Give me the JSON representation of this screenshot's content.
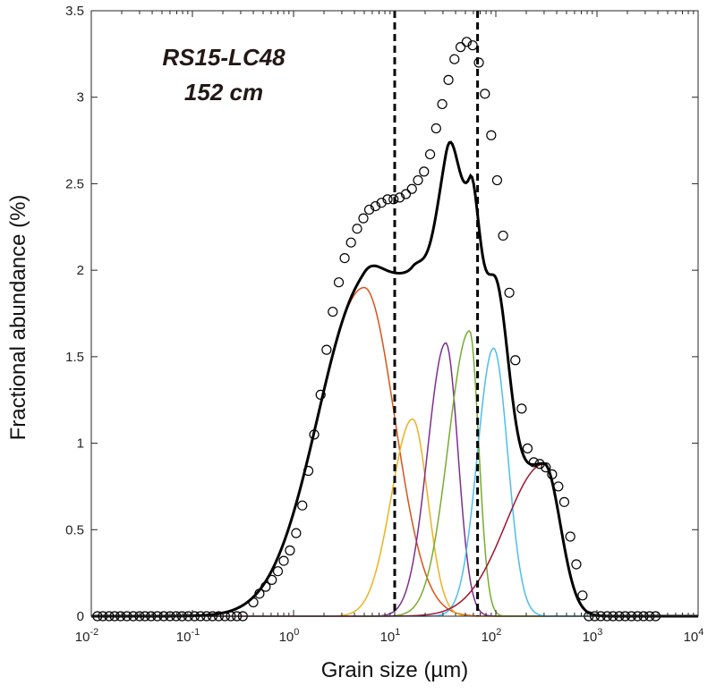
{
  "chart_data": {
    "type": "line",
    "title": "",
    "annotation": [
      "RS15-LC48",
      "152 cm"
    ],
    "xlabel": "Grain size (µm)",
    "ylabel": "Fractional abundance (%)",
    "xscale": "log",
    "xlim": [
      0.01,
      10000
    ],
    "ylim": [
      0,
      3.5
    ],
    "x_ticks": [
      {
        "value": 0.01,
        "base": "10",
        "exp": "-2"
      },
      {
        "value": 0.1,
        "base": "10",
        "exp": "-1"
      },
      {
        "value": 1,
        "base": "10",
        "exp": "0"
      },
      {
        "value": 10,
        "base": "10",
        "exp": "1"
      },
      {
        "value": 100,
        "base": "10",
        "exp": "2"
      },
      {
        "value": 1000,
        "base": "10",
        "exp": "3"
      },
      {
        "value": 10000,
        "base": "10",
        "exp": "4"
      }
    ],
    "y_ticks": [
      {
        "value": 0,
        "label": "0"
      },
      {
        "value": 0.5,
        "label": "0.5"
      },
      {
        "value": 1,
        "label": "1"
      },
      {
        "value": 1.5,
        "label": "1.5"
      },
      {
        "value": 2,
        "label": "2"
      },
      {
        "value": 2.5,
        "label": "2.5"
      },
      {
        "value": 3,
        "label": "3"
      },
      {
        "value": 3.5,
        "label": "3.5"
      }
    ],
    "grid": false,
    "legend": "none",
    "vlines": [
      10,
      66
    ],
    "components": [
      {
        "color": "#d95319",
        "peak_x": 5.0,
        "peak_y": 1.9,
        "sigma_left_decades": 0.46,
        "sigma_right_decades": 0.3
      },
      {
        "color": "#edb120",
        "peak_x": 15.0,
        "peak_y": 1.14,
        "sigma_left_decades": 0.21,
        "sigma_right_decades": 0.15
      },
      {
        "color": "#7e2f8e",
        "peak_x": 32.0,
        "peak_y": 1.58,
        "sigma_left_decades": 0.18,
        "sigma_right_decades": 0.12
      },
      {
        "color": "#77ac30",
        "peak_x": 55.0,
        "peak_y": 1.65,
        "sigma_left_decades": 0.21,
        "sigma_right_decades": 0.09
      },
      {
        "color": "#4dbeee",
        "peak_x": 95.0,
        "peak_y": 1.55,
        "sigma_left_decades": 0.16,
        "sigma_right_decades": 0.14
      },
      {
        "color": "#a2142f",
        "peak_x": 300.0,
        "peak_y": 0.88,
        "sigma_left_decades": 0.38,
        "sigma_right_decades": 0.16
      }
    ],
    "fit_color": "#000000",
    "measured_points": [
      [
        0.0115,
        0
      ],
      [
        0.013,
        0
      ],
      [
        0.015,
        0
      ],
      [
        0.017,
        0
      ],
      [
        0.0195,
        0
      ],
      [
        0.0225,
        0
      ],
      [
        0.026,
        0
      ],
      [
        0.03,
        0
      ],
      [
        0.034,
        0
      ],
      [
        0.039,
        0
      ],
      [
        0.045,
        0
      ],
      [
        0.052,
        0
      ],
      [
        0.06,
        0
      ],
      [
        0.069,
        0
      ],
      [
        0.079,
        0
      ],
      [
        0.091,
        0
      ],
      [
        0.105,
        0
      ],
      [
        0.12,
        0
      ],
      [
        0.138,
        0
      ],
      [
        0.158,
        0
      ],
      [
        0.182,
        0
      ],
      [
        0.21,
        0
      ],
      [
        0.24,
        0
      ],
      [
        0.275,
        0
      ],
      [
        0.315,
        0
      ],
      [
        0.4,
        0.08
      ],
      [
        0.46,
        0.13
      ],
      [
        0.53,
        0.17
      ],
      [
        0.61,
        0.21
      ],
      [
        0.7,
        0.26
      ],
      [
        0.8,
        0.32
      ],
      [
        0.92,
        0.38
      ],
      [
        1.06,
        0.48
      ],
      [
        1.22,
        0.64
      ],
      [
        1.4,
        0.84
      ],
      [
        1.6,
        1.05
      ],
      [
        1.85,
        1.28
      ],
      [
        2.12,
        1.54
      ],
      [
        2.44,
        1.76
      ],
      [
        2.8,
        1.93
      ],
      [
        3.2,
        2.07
      ],
      [
        3.7,
        2.16
      ],
      [
        4.25,
        2.24
      ],
      [
        4.9,
        2.3
      ],
      [
        5.6,
        2.35
      ],
      [
        6.45,
        2.37
      ],
      [
        7.4,
        2.39
      ],
      [
        8.5,
        2.41
      ],
      [
        9.75,
        2.41
      ],
      [
        11.2,
        2.42
      ],
      [
        12.9,
        2.44
      ],
      [
        14.8,
        2.47
      ],
      [
        17.0,
        2.52
      ],
      [
        19.5,
        2.57
      ],
      [
        22.4,
        2.67
      ],
      [
        25.7,
        2.82
      ],
      [
        29.5,
        2.96
      ],
      [
        34.0,
        3.1
      ],
      [
        39.0,
        3.22
      ],
      [
        44.8,
        3.29
      ],
      [
        51.5,
        3.32
      ],
      [
        59.0,
        3.3
      ],
      [
        68.0,
        3.2
      ],
      [
        78.0,
        3.02
      ],
      [
        90.0,
        2.78
      ],
      [
        103.0,
        2.52
      ],
      [
        118.0,
        2.2
      ],
      [
        136.0,
        1.87
      ],
      [
        156.0,
        1.48
      ],
      [
        180.0,
        1.2
      ],
      [
        206.0,
        0.97
      ],
      [
        237.0,
        0.89
      ],
      [
        272.0,
        0.88
      ],
      [
        312.0,
        0.86
      ],
      [
        360.0,
        0.82
      ],
      [
        415.0,
        0.75
      ],
      [
        475.0,
        0.66
      ],
      [
        545.0,
        0.46
      ],
      [
        625.0,
        0.3
      ],
      [
        720.0,
        0.12
      ],
      [
        830.0,
        0
      ],
      [
        950.0,
        0
      ],
      [
        1090.0,
        0
      ],
      [
        1260.0,
        0
      ],
      [
        1440.0,
        0
      ],
      [
        1660.0,
        0
      ],
      [
        1900.0,
        0
      ],
      [
        2190.0,
        0
      ],
      [
        2520.0,
        0
      ],
      [
        2890.0,
        0
      ],
      [
        3320.0,
        0
      ],
      [
        3800.0,
        0
      ]
    ]
  }
}
